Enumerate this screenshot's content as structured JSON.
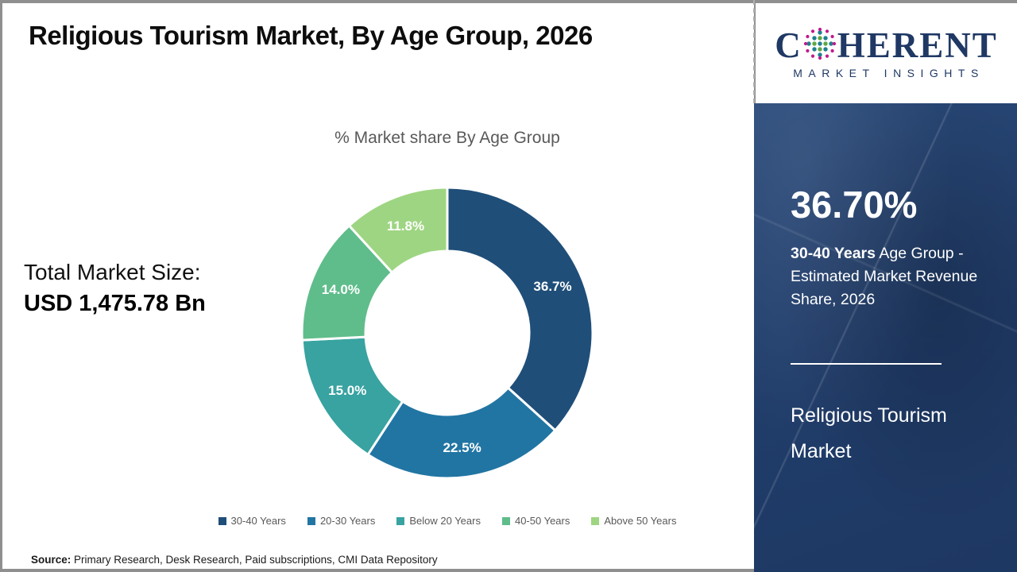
{
  "title": "Religious Tourism Market, By Age Group, 2026",
  "chart_data": {
    "type": "pie",
    "subtype": "donut",
    "title": "% Market share By Age Group",
    "categories": [
      "30-40 Years",
      "20-30 Years",
      "Below 20 Years",
      "40-50 Years",
      "Above 50 Years"
    ],
    "values": [
      36.7,
      22.5,
      15.0,
      14.0,
      11.8
    ],
    "labels": [
      "36.7%",
      "22.5%",
      "15.0%",
      "14.0%",
      "11.8%"
    ],
    "colors": [
      "#1F4E79",
      "#2175A3",
      "#38A3A1",
      "#5FBD8B",
      "#9ED582"
    ],
    "start_angle_deg": 0,
    "direction": "clockwise",
    "legend_position": "bottom",
    "label_color": "#FFFFFF"
  },
  "total": {
    "label": "Total Market Size:",
    "value": "USD 1,475.78 Bn"
  },
  "sidebar": {
    "stat_value": "36.70%",
    "stat_bold": "30-40 Years",
    "stat_rest": " Age Group - Estimated Market Revenue Share, 2026",
    "market_title": "Religious Tourism Market",
    "bg_color": "#24416E"
  },
  "logo": {
    "part1": "C",
    "part2": "HERENT",
    "subtitle": "MARKET INSIGHTS",
    "brand_color": "#1F3864",
    "globe_dot_colors": [
      "#20808F",
      "#5FA743",
      "#C2188C"
    ]
  },
  "source": {
    "prefix": "Source:",
    "text": " Primary Research, Desk Research, Paid subscriptions, CMI Data Repository"
  }
}
